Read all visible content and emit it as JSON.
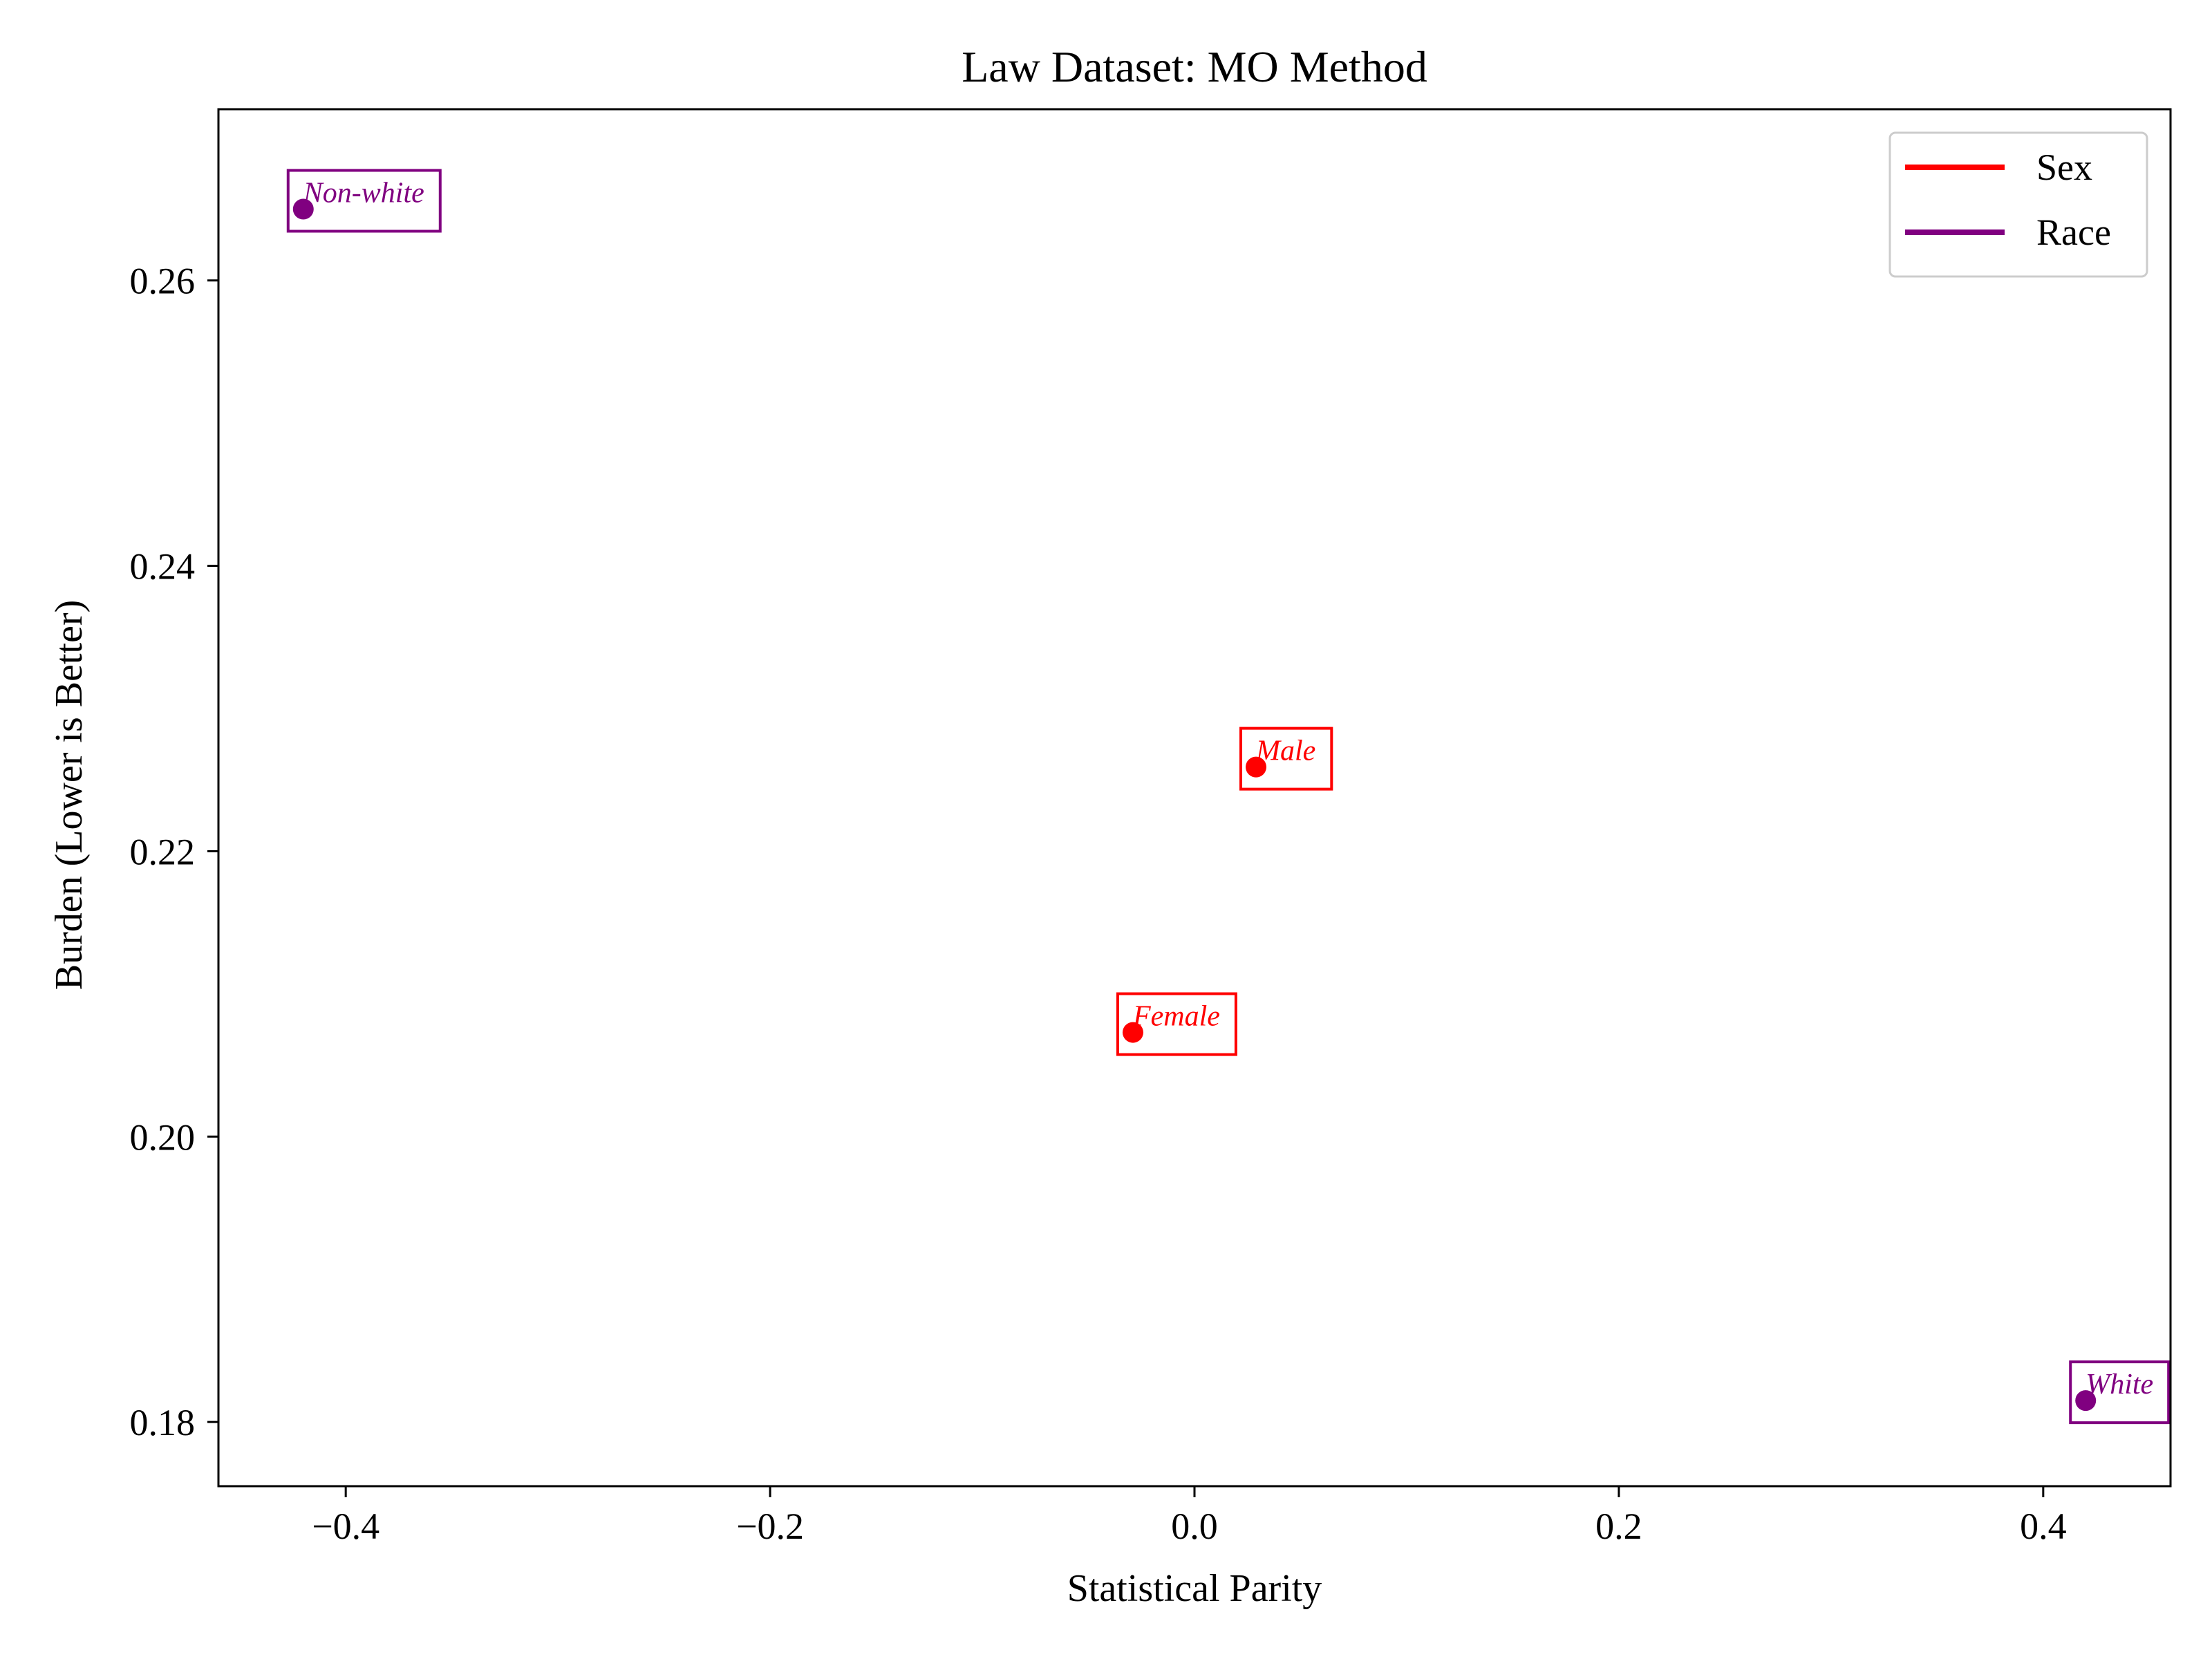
{
  "chart_data": {
    "type": "scatter",
    "title": "Law Dataset: MO Method",
    "xlabel": "Statistical Parity",
    "ylabel": "Burden (Lower is Better)",
    "xlim": [
      -0.46,
      0.46
    ],
    "ylim": [
      0.1755,
      0.272
    ],
    "x_ticks": [
      -0.4,
      -0.2,
      0.0,
      0.2,
      0.4
    ],
    "x_tick_labels": [
      "−0.4",
      "−0.2",
      "0.0",
      "0.2",
      "0.4"
    ],
    "y_ticks": [
      0.18,
      0.2,
      0.22,
      0.24,
      0.26
    ],
    "y_tick_labels": [
      "0.18",
      "0.20",
      "0.22",
      "0.24",
      "0.26"
    ],
    "grid": false,
    "legend_position": "top-right",
    "series": [
      {
        "name": "Sex",
        "color": "#ff0000",
        "points": [
          {
            "label": "Male",
            "x": 0.029,
            "y": 0.2259
          },
          {
            "label": "Female",
            "x": -0.029,
            "y": 0.2073
          }
        ]
      },
      {
        "name": "Race",
        "color": "#800080",
        "points": [
          {
            "label": "Non-white",
            "x": -0.42,
            "y": 0.265
          },
          {
            "label": "White",
            "x": 0.42,
            "y": 0.1815
          }
        ]
      }
    ]
  }
}
